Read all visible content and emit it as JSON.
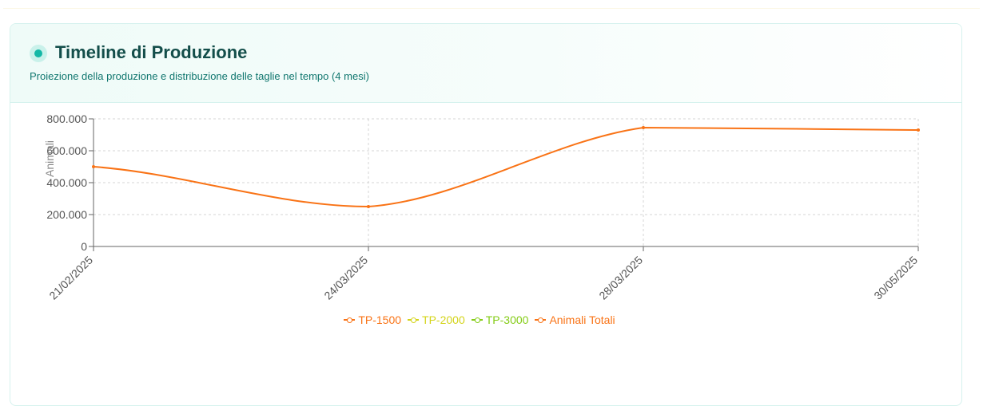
{
  "header": {
    "title": "Timeline di Produzione",
    "subtitle": "Proiezione della produzione e distribuzione delle taglie nel tempo (4 mesi)"
  },
  "colors": {
    "accent": "#14b8a6",
    "tp1500": "#f97316",
    "tp2000": "#d4d41a",
    "tp3000": "#84cc16",
    "totali": "#f97316"
  },
  "chart_data": {
    "type": "line",
    "x": [
      "21/02/2025",
      "24/03/2025",
      "28/03/2025",
      "30/05/2025"
    ],
    "ylabel": "Animali",
    "ylim": [
      0,
      800000
    ],
    "yticks": [
      "0",
      "200.000",
      "400.000",
      "600.000",
      "800.000"
    ],
    "grid": true,
    "legend_position": "bottom",
    "series": [
      {
        "name": "TP-1500",
        "values": [
          null,
          null,
          null,
          null
        ]
      },
      {
        "name": "TP-2000",
        "values": [
          null,
          null,
          null,
          null
        ]
      },
      {
        "name": "TP-3000",
        "values": [
          null,
          null,
          null,
          null
        ]
      },
      {
        "name": "Animali Totali",
        "values": [
          500000,
          250000,
          745000,
          730000
        ]
      }
    ]
  }
}
